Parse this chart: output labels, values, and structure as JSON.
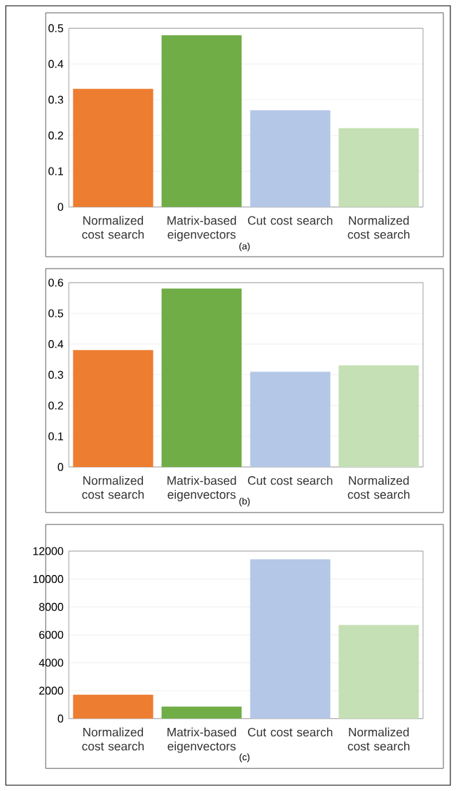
{
  "chart_data": [
    {
      "type": "bar",
      "categories": [
        "Normalized cost search",
        "Matrix-based eigenvectors",
        "Cut cost search",
        "Normalized cost search"
      ],
      "values": [
        0.33,
        0.48,
        0.27,
        0.22
      ],
      "colors": [
        "#ed7d31",
        "#70ad47",
        "#b4c7e7",
        "#c5e0b4"
      ],
      "ylim": [
        0,
        0.5
      ],
      "yticks": [
        0,
        0.1,
        0.2,
        0.3,
        0.4,
        0.5
      ],
      "grid": "y",
      "annotations": [
        "(a)"
      ]
    },
    {
      "type": "bar",
      "categories": [
        "Normalized cost search",
        "Matrix-based eigenvectors",
        "Cut cost search",
        "Normalized cost search"
      ],
      "values": [
        0.38,
        0.58,
        0.31,
        0.33
      ],
      "colors": [
        "#ed7d31",
        "#70ad47",
        "#b4c7e7",
        "#c5e0b4"
      ],
      "ylim": [
        0,
        0.6
      ],
      "yticks": [
        0,
        0.1,
        0.2,
        0.3,
        0.4,
        0.5,
        0.6
      ],
      "grid": "y",
      "annotations": [
        "(b)"
      ]
    },
    {
      "type": "bar",
      "categories": [
        "Normalized cost search",
        "Matrix-based eigenvectors",
        "Cut cost search",
        "Normalized cost search"
      ],
      "values": [
        1700,
        850,
        11400,
        6700
      ],
      "colors": [
        "#ed7d31",
        "#70ad47",
        "#b4c7e7",
        "#c5e0b4"
      ],
      "ylim": [
        0,
        12000
      ],
      "yticks": [
        0,
        2000,
        4000,
        6000,
        8000,
        10000,
        12000
      ],
      "grid": "y",
      "annotations": [
        "(c)"
      ]
    }
  ]
}
